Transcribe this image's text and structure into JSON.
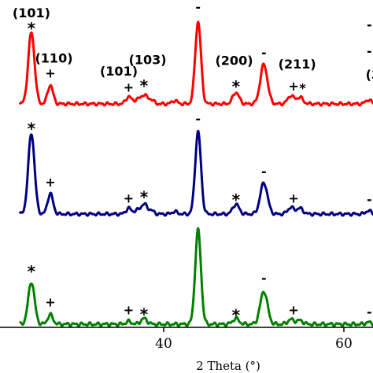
{
  "chart_data": {
    "type": "line",
    "xlabel": "2 Theta (°)",
    "ylabel": "",
    "xlim": [
      24,
      64
    ],
    "x_ticks": [
      "40",
      "60"
    ],
    "x_tick_values": [
      40,
      60
    ],
    "series": [
      {
        "color": "#ff0000",
        "baseline": 0.93,
        "peaks": [
          {
            "x": 25.3,
            "h": 0.87,
            "w": 0.35
          },
          {
            "x": 27.4,
            "h": 0.23,
            "w": 0.3
          },
          {
            "x": 36.1,
            "h": 0.09,
            "w": 0.3
          },
          {
            "x": 37.0,
            "h": 0.05,
            "w": 0.3
          },
          {
            "x": 37.8,
            "h": 0.11,
            "w": 0.35
          },
          {
            "x": 38.6,
            "h": 0.05,
            "w": 0.3
          },
          {
            "x": 41.2,
            "h": 0.04,
            "w": 0.3
          },
          {
            "x": 43.8,
            "h": 1.0,
            "w": 0.32
          },
          {
            "x": 48.0,
            "h": 0.14,
            "w": 0.35
          },
          {
            "x": 51.1,
            "h": 0.48,
            "w": 0.4
          },
          {
            "x": 54.1,
            "h": 0.1,
            "w": 0.35
          },
          {
            "x": 55.1,
            "h": 0.08,
            "w": 0.35
          },
          {
            "x": 62.7,
            "h": 0.05,
            "w": 0.3
          }
        ]
      },
      {
        "color": "#000080",
        "baseline": 0.95,
        "peaks": [
          {
            "x": 25.3,
            "h": 0.98,
            "w": 0.35
          },
          {
            "x": 27.4,
            "h": 0.25,
            "w": 0.3
          },
          {
            "x": 36.1,
            "h": 0.07,
            "w": 0.3
          },
          {
            "x": 37.0,
            "h": 0.04,
            "w": 0.3
          },
          {
            "x": 37.8,
            "h": 0.12,
            "w": 0.35
          },
          {
            "x": 38.6,
            "h": 0.04,
            "w": 0.3
          },
          {
            "x": 41.2,
            "h": 0.03,
            "w": 0.3
          },
          {
            "x": 43.8,
            "h": 1.0,
            "w": 0.32
          },
          {
            "x": 48.0,
            "h": 0.12,
            "w": 0.35
          },
          {
            "x": 51.1,
            "h": 0.38,
            "w": 0.4
          },
          {
            "x": 54.1,
            "h": 0.08,
            "w": 0.35
          },
          {
            "x": 55.1,
            "h": 0.07,
            "w": 0.35
          },
          {
            "x": 62.7,
            "h": 0.04,
            "w": 0.3
          }
        ]
      },
      {
        "color": "#008000",
        "baseline": 0.95,
        "peaks": [
          {
            "x": 25.3,
            "h": 0.45,
            "w": 0.35
          },
          {
            "x": 27.4,
            "h": 0.1,
            "w": 0.3
          },
          {
            "x": 36.1,
            "h": 0.03,
            "w": 0.3
          },
          {
            "x": 37.8,
            "h": 0.06,
            "w": 0.35
          },
          {
            "x": 43.8,
            "h": 1.0,
            "w": 0.32
          },
          {
            "x": 48.0,
            "h": 0.06,
            "w": 0.35
          },
          {
            "x": 51.1,
            "h": 0.35,
            "w": 0.4
          },
          {
            "x": 54.1,
            "h": 0.05,
            "w": 0.35
          },
          {
            "x": 55.1,
            "h": 0.04,
            "w": 0.35
          },
          {
            "x": 62.7,
            "h": 0.02,
            "w": 0.3
          }
        ]
      }
    ],
    "annotations": [
      {
        "text": "(101)",
        "x": 25.3,
        "panel": 0,
        "level": 0.98,
        "style": "label"
      },
      {
        "text": "*",
        "x": 25.3,
        "panel": 0,
        "level": 0.9,
        "style": "marker"
      },
      {
        "text": "(110)",
        "x": 27.8,
        "panel": 0,
        "level": 0.47,
        "style": "label"
      },
      {
        "text": "+",
        "x": 27.4,
        "panel": 0,
        "level": 0.3,
        "style": "marker-sm"
      },
      {
        "text": "(101)",
        "x": 35.0,
        "panel": 0,
        "level": 0.32,
        "style": "label"
      },
      {
        "text": "+",
        "x": 36.1,
        "panel": 0,
        "level": 0.14,
        "style": "marker-sm"
      },
      {
        "text": "(103)",
        "x": 38.2,
        "panel": 0,
        "level": 0.45,
        "style": "label"
      },
      {
        "text": "*",
        "x": 37.8,
        "panel": 0,
        "level": 0.25,
        "style": "marker"
      },
      {
        "text": "-",
        "x": 43.8,
        "panel": 0,
        "level": 1.05,
        "style": "marker-sm"
      },
      {
        "text": "(200)",
        "x": 47.8,
        "panel": 0,
        "level": 0.44,
        "style": "label"
      },
      {
        "text": "*",
        "x": 48.0,
        "panel": 0,
        "level": 0.24,
        "style": "marker"
      },
      {
        "text": "-",
        "x": 51.1,
        "panel": 0,
        "level": 0.53,
        "style": "marker-sm"
      },
      {
        "text": "(211)",
        "x": 54.8,
        "panel": 0,
        "level": 0.4,
        "style": "label"
      },
      {
        "text": "+",
        "x": 54.4,
        "panel": 0,
        "level": 0.15,
        "style": "marker-sm"
      },
      {
        "text": "*",
        "x": 55.4,
        "panel": 0,
        "level": 0.13,
        "style": "marker-sm"
      },
      {
        "text": "-",
        "x": 62.8,
        "panel": 0,
        "level": 0.55,
        "style": "marker-sm"
      },
      {
        "text": "-",
        "x": 62.8,
        "panel": 0,
        "level": 0.85,
        "style": "marker-sm"
      },
      {
        "text": "(3",
        "x": 63.2,
        "panel": 0,
        "level": 0.28,
        "style": "label"
      },
      {
        "text": "*",
        "x": 25.3,
        "panel": 1,
        "level": 1.03,
        "style": "marker"
      },
      {
        "text": "+",
        "x": 27.4,
        "panel": 1,
        "level": 0.32,
        "style": "marker-sm"
      },
      {
        "text": "+",
        "x": 36.1,
        "panel": 1,
        "level": 0.13,
        "style": "marker-sm"
      },
      {
        "text": "*",
        "x": 37.8,
        "panel": 1,
        "level": 0.24,
        "style": "marker"
      },
      {
        "text": "-",
        "x": 43.8,
        "panel": 1,
        "level": 1.05,
        "style": "marker-sm"
      },
      {
        "text": "*",
        "x": 48.0,
        "panel": 1,
        "level": 0.21,
        "style": "marker"
      },
      {
        "text": "-",
        "x": 51.1,
        "panel": 1,
        "level": 0.44,
        "style": "marker-sm"
      },
      {
        "text": "+",
        "x": 54.4,
        "panel": 1,
        "level": 0.13,
        "style": "marker-sm"
      },
      {
        "text": "-",
        "x": 62.8,
        "panel": 1,
        "level": 0.12,
        "style": "marker-sm"
      },
      {
        "text": "*",
        "x": 25.3,
        "panel": 2,
        "level": 0.57,
        "style": "marker"
      },
      {
        "text": "+",
        "x": 27.4,
        "panel": 2,
        "level": 0.18,
        "style": "marker-sm"
      },
      {
        "text": "+",
        "x": 36.1,
        "panel": 2,
        "level": 0.1,
        "style": "marker-sm"
      },
      {
        "text": "*",
        "x": 37.8,
        "panel": 2,
        "level": 0.14,
        "style": "marker"
      },
      {
        "text": "*",
        "x": 48.0,
        "panel": 2,
        "level": 0.13,
        "style": "marker"
      },
      {
        "text": "-",
        "x": 51.1,
        "panel": 2,
        "level": 0.42,
        "style": "marker-sm"
      },
      {
        "text": "+",
        "x": 54.4,
        "panel": 2,
        "level": 0.1,
        "style": "marker-sm"
      },
      {
        "text": "-",
        "x": 62.8,
        "panel": 2,
        "level": 0.08,
        "style": "marker-sm"
      }
    ]
  }
}
